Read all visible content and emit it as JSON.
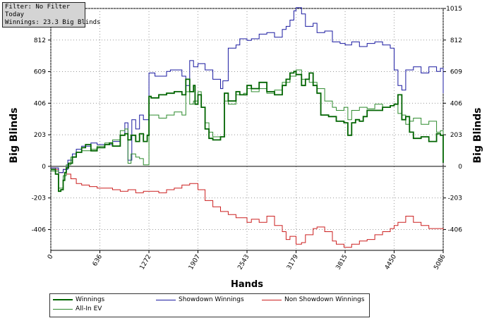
{
  "info": {
    "filter": "Filter: No Filter",
    "period": "Today",
    "winnings": "Winnings: 23.3 Big Blinds"
  },
  "chart_data": {
    "type": "line",
    "xlabel": "Hands",
    "ylabel_left": "Big Blinds",
    "ylabel_right": "Big Blinds",
    "xlim": [
      0,
      5086
    ],
    "ylim": [
      -540,
      1015
    ],
    "x_ticks": [
      0,
      636,
      1272,
      1907,
      2543,
      3179,
      3815,
      4450,
      5086
    ],
    "y_ticks": [
      -406,
      -203,
      0,
      203,
      406,
      609,
      812,
      1015
    ],
    "y_tick_labels_left": [
      "-406",
      "-203",
      "0",
      "203",
      "406",
      "609",
      "812",
      ""
    ],
    "y_tick_labels_right": [
      "-406",
      "-203",
      "0",
      "203",
      "406",
      "609",
      "812",
      "1015"
    ],
    "grid": true,
    "legend_position": "bottom",
    "series": [
      {
        "name": "Winnings",
        "color": "#006400",
        "x": [
          0,
          60,
          100,
          130,
          160,
          180,
          200,
          230,
          280,
          330,
          400,
          450,
          520,
          600,
          700,
          760,
          800,
          900,
          960,
          1000,
          1040,
          1100,
          1150,
          1200,
          1250,
          1272,
          1300,
          1400,
          1500,
          1600,
          1700,
          1750,
          1800,
          1850,
          1870,
          1907,
          1950,
          2000,
          2050,
          2100,
          2200,
          2250,
          2300,
          2400,
          2450,
          2543,
          2600,
          2700,
          2800,
          2900,
          3000,
          3050,
          3100,
          3150,
          3179,
          3250,
          3300,
          3350,
          3400,
          3450,
          3500,
          3600,
          3700,
          3800,
          3850,
          3900,
          3950,
          4000,
          4050,
          4100,
          4200,
          4300,
          4400,
          4450,
          4500,
          4550,
          4600,
          4650,
          4700,
          4800,
          4900,
          5000,
          5050,
          5086
        ],
        "y": [
          -20,
          -50,
          -160,
          -150,
          -90,
          -40,
          -10,
          20,
          60,
          90,
          120,
          140,
          100,
          120,
          140,
          150,
          130,
          200,
          210,
          170,
          200,
          160,
          210,
          160,
          200,
          450,
          440,
          460,
          470,
          480,
          460,
          560,
          480,
          520,
          400,
          460,
          380,
          240,
          180,
          170,
          190,
          470,
          420,
          480,
          460,
          520,
          500,
          540,
          480,
          460,
          520,
          560,
          600,
          610,
          590,
          520,
          560,
          600,
          520,
          470,
          330,
          320,
          290,
          280,
          200,
          280,
          300,
          290,
          320,
          360,
          360,
          380,
          390,
          400,
          460,
          300,
          320,
          220,
          180,
          190,
          160,
          210,
          200,
          23
        ]
      },
      {
        "name": "All-In EV",
        "color": "#2e8b2e",
        "x": [
          0,
          100,
          160,
          200,
          260,
          330,
          400,
          520,
          600,
          700,
          800,
          900,
          960,
          1000,
          1040,
          1100,
          1150,
          1200,
          1272,
          1400,
          1500,
          1600,
          1700,
          1750,
          1800,
          1850,
          1907,
          1950,
          2000,
          2050,
          2100,
          2200,
          2250,
          2300,
          2400,
          2500,
          2543,
          2600,
          2700,
          2800,
          2900,
          3000,
          3100,
          3179,
          3250,
          3350,
          3450,
          3550,
          3650,
          3700,
          3800,
          3850,
          3900,
          4000,
          4100,
          4200,
          4300,
          4400,
          4450,
          4500,
          4550,
          4600,
          4650,
          4700,
          4800,
          4900,
          5000,
          5050,
          5086
        ],
        "y": [
          -30,
          -140,
          -60,
          10,
          60,
          90,
          100,
          110,
          130,
          150,
          170,
          230,
          240,
          20,
          80,
          60,
          50,
          10,
          330,
          310,
          330,
          350,
          330,
          480,
          400,
          420,
          480,
          380,
          280,
          220,
          190,
          190,
          420,
          400,
          460,
          470,
          500,
          480,
          500,
          470,
          490,
          540,
          580,
          620,
          560,
          540,
          500,
          420,
          380,
          360,
          380,
          300,
          360,
          380,
          370,
          400,
          380,
          390,
          400,
          340,
          330,
          270,
          290,
          310,
          270,
          290,
          220,
          230,
          140
        ]
      },
      {
        "name": "Showdown Winnings",
        "color": "#1a1aa0",
        "x": [
          0,
          100,
          160,
          220,
          280,
          330,
          400,
          520,
          600,
          800,
          900,
          960,
          1000,
          1050,
          1100,
          1150,
          1200,
          1272,
          1350,
          1500,
          1550,
          1700,
          1750,
          1800,
          1850,
          1907,
          2000,
          2100,
          2200,
          2230,
          2300,
          2400,
          2450,
          2543,
          2600,
          2700,
          2800,
          2900,
          3000,
          3050,
          3100,
          3150,
          3179,
          3250,
          3300,
          3400,
          3450,
          3550,
          3650,
          3750,
          3815,
          3900,
          4000,
          4100,
          4200,
          4300,
          4400,
          4450,
          4500,
          4550,
          4600,
          4700,
          4800,
          4900,
          5000,
          5050,
          5086
        ],
        "y": [
          -10,
          -40,
          -20,
          40,
          80,
          110,
          130,
          150,
          140,
          160,
          200,
          280,
          40,
          300,
          240,
          330,
          300,
          600,
          580,
          610,
          620,
          580,
          520,
          680,
          640,
          660,
          620,
          560,
          500,
          550,
          760,
          780,
          820,
          810,
          820,
          850,
          860,
          830,
          880,
          900,
          940,
          1000,
          1020,
          980,
          900,
          920,
          860,
          870,
          800,
          790,
          780,
          800,
          770,
          790,
          800,
          780,
          760,
          620,
          520,
          490,
          620,
          640,
          600,
          640,
          610,
          630,
          470
        ]
      },
      {
        "name": "Non Showdown Winnings",
        "color": "#cc2020",
        "x": [
          0,
          60,
          100,
          160,
          200,
          260,
          330,
          400,
          500,
          600,
          700,
          800,
          900,
          1000,
          1100,
          1200,
          1272,
          1400,
          1500,
          1600,
          1700,
          1800,
          1907,
          2000,
          2100,
          2200,
          2300,
          2400,
          2543,
          2600,
          2700,
          2800,
          2900,
          3000,
          3050,
          3100,
          3179,
          3250,
          3300,
          3400,
          3450,
          3550,
          3650,
          3700,
          3800,
          3900,
          4000,
          4100,
          4200,
          4300,
          4400,
          4450,
          4500,
          4600,
          4700,
          4800,
          4900,
          5000,
          5086
        ],
        "y": [
          -10,
          -20,
          -40,
          -20,
          -50,
          -80,
          -110,
          -120,
          -130,
          -140,
          -140,
          -150,
          -160,
          -150,
          -170,
          -160,
          -160,
          -170,
          -150,
          -140,
          -120,
          -110,
          -150,
          -220,
          -260,
          -290,
          -310,
          -330,
          -360,
          -340,
          -360,
          -320,
          -380,
          -420,
          -470,
          -450,
          -500,
          -490,
          -440,
          -400,
          -390,
          -420,
          -480,
          -500,
          -520,
          -500,
          -480,
          -470,
          -440,
          -420,
          -400,
          -380,
          -360,
          -320,
          -360,
          -380,
          -400,
          -400,
          -410
        ]
      }
    ]
  },
  "legend": {
    "items": [
      {
        "label": "Winnings",
        "color": "#006400"
      },
      {
        "label": "Showdown Winnings",
        "color": "#1a1aa0"
      },
      {
        "label": "Non Showdown Winnings",
        "color": "#cc2020"
      },
      {
        "label": "All-In EV",
        "color": "#2e8b2e"
      }
    ]
  }
}
